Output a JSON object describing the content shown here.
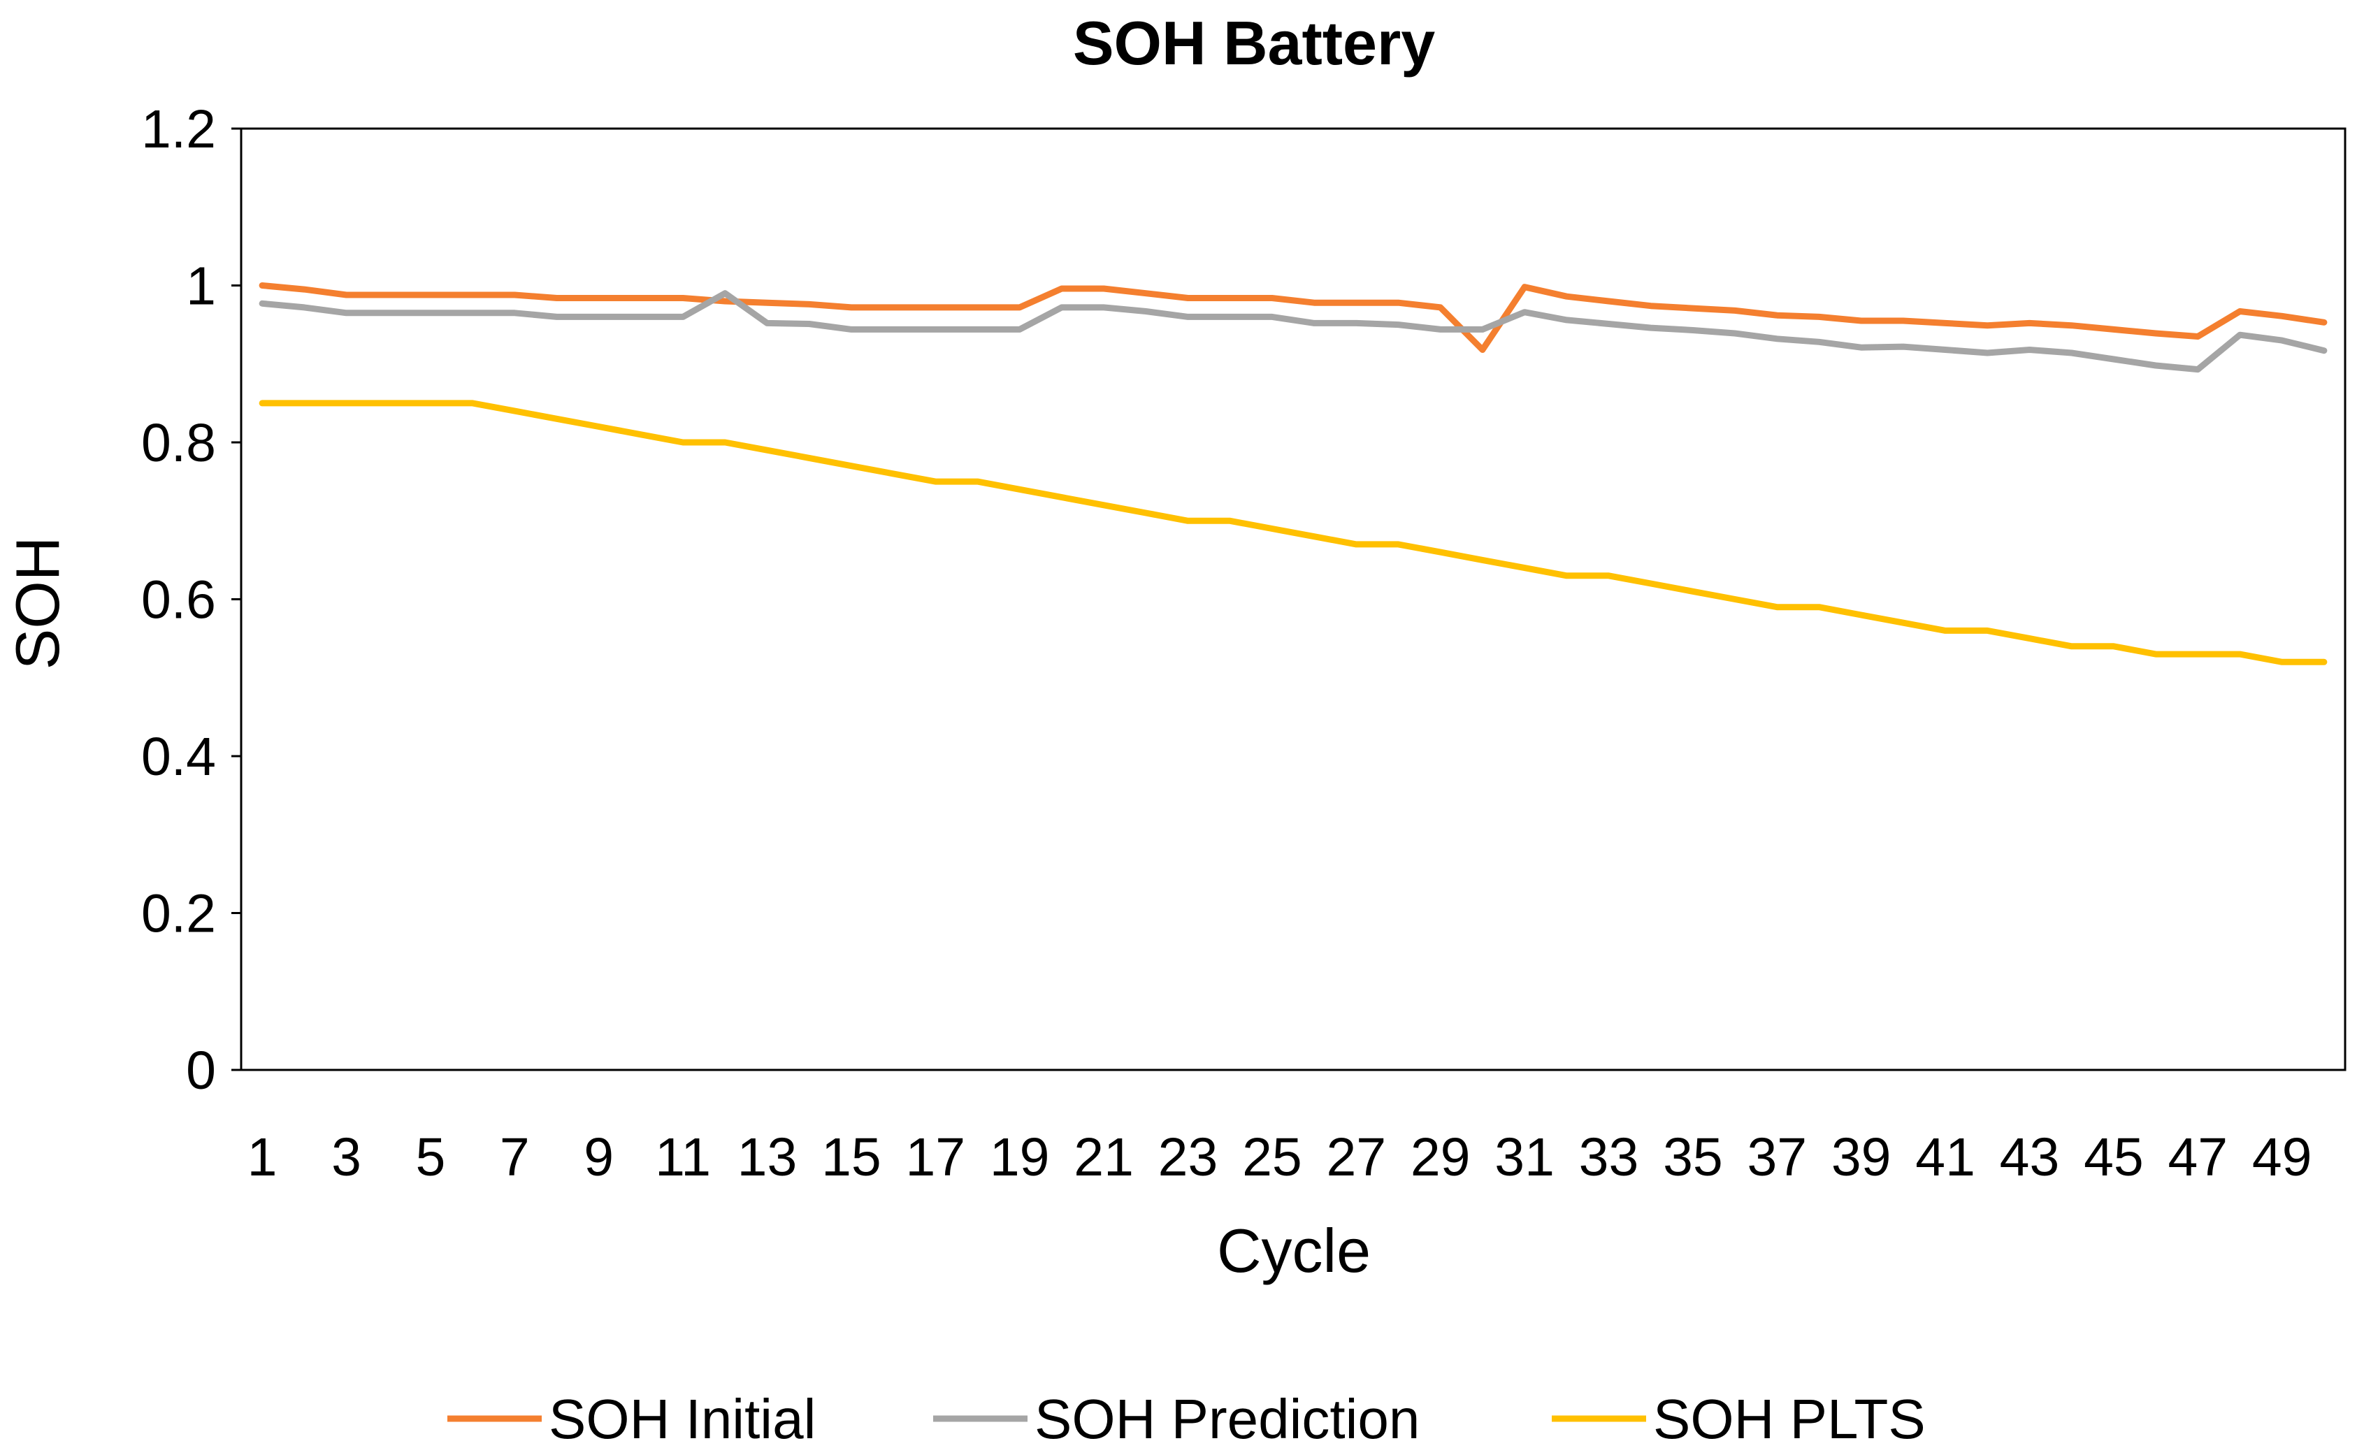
{
  "chart_data": {
    "type": "line",
    "title": "SOH Battery",
    "xlabel": "Cycle",
    "ylabel": "SOH",
    "ylim": [
      0,
      1.2
    ],
    "yticks": [
      "0",
      "0.2",
      "0.4",
      "0.6",
      "0.8",
      "1",
      "1.2"
    ],
    "ytick_values": [
      0,
      0.2,
      0.4,
      0.6,
      0.8,
      1.0,
      1.2
    ],
    "xtick_labels": [
      "1",
      "3",
      "5",
      "7",
      "9",
      "11",
      "13",
      "15",
      "17",
      "19",
      "21",
      "23",
      "25",
      "27",
      "29",
      "31",
      "33",
      "35",
      "37",
      "39",
      "41",
      "43",
      "45",
      "47",
      "49"
    ],
    "grid": false,
    "legend_position": "bottom",
    "x": [
      1,
      2,
      3,
      4,
      5,
      6,
      7,
      8,
      9,
      10,
      11,
      12,
      13,
      14,
      15,
      16,
      17,
      18,
      19,
      20,
      21,
      22,
      23,
      24,
      25,
      26,
      27,
      28,
      29,
      30,
      31,
      32,
      33,
      34,
      35,
      36,
      37,
      38,
      39,
      40,
      41,
      42,
      43,
      44,
      45,
      46,
      47,
      48,
      49,
      50
    ],
    "series": [
      {
        "name": "SOH Initial",
        "color": "#F47F2F",
        "values": [
          1.0,
          0.995,
          0.988,
          0.988,
          0.988,
          0.988,
          0.988,
          0.984,
          0.984,
          0.984,
          0.984,
          0.98,
          0.978,
          0.976,
          0.972,
          0.972,
          0.972,
          0.972,
          0.972,
          0.996,
          0.996,
          0.99,
          0.984,
          0.984,
          0.984,
          0.978,
          0.978,
          0.978,
          0.972,
          0.918,
          0.998,
          0.986,
          0.98,
          0.974,
          0.971,
          0.968,
          0.962,
          0.96,
          0.955,
          0.955,
          0.952,
          0.949,
          0.952,
          0.949,
          0.944,
          0.939,
          0.935,
          0.967,
          0.961,
          0.953
        ]
      },
      {
        "name": "SOH Prediction",
        "color": "#A5A5A5",
        "values": [
          0.977,
          0.972,
          0.965,
          0.965,
          0.965,
          0.965,
          0.965,
          0.96,
          0.96,
          0.96,
          0.96,
          0.99,
          0.952,
          0.951,
          0.944,
          0.944,
          0.944,
          0.944,
          0.944,
          0.972,
          0.972,
          0.967,
          0.96,
          0.96,
          0.96,
          0.952,
          0.952,
          0.95,
          0.944,
          0.944,
          0.966,
          0.956,
          0.951,
          0.946,
          0.943,
          0.939,
          0.932,
          0.928,
          0.921,
          0.922,
          0.918,
          0.914,
          0.918,
          0.914,
          0.906,
          0.898,
          0.893,
          0.937,
          0.93,
          0.917
        ]
      },
      {
        "name": "SOH PLTS",
        "color": "#FFC000",
        "values": [
          0.85,
          0.85,
          0.85,
          0.85,
          0.85,
          0.85,
          0.84,
          0.83,
          0.82,
          0.81,
          0.8,
          0.8,
          0.79,
          0.78,
          0.77,
          0.76,
          0.75,
          0.75,
          0.74,
          0.73,
          0.72,
          0.71,
          0.7,
          0.7,
          0.69,
          0.68,
          0.67,
          0.67,
          0.66,
          0.65,
          0.64,
          0.63,
          0.63,
          0.62,
          0.61,
          0.6,
          0.59,
          0.59,
          0.58,
          0.57,
          0.56,
          0.56,
          0.55,
          0.54,
          0.54,
          0.53,
          0.53,
          0.53,
          0.52,
          0.52
        ]
      }
    ]
  }
}
